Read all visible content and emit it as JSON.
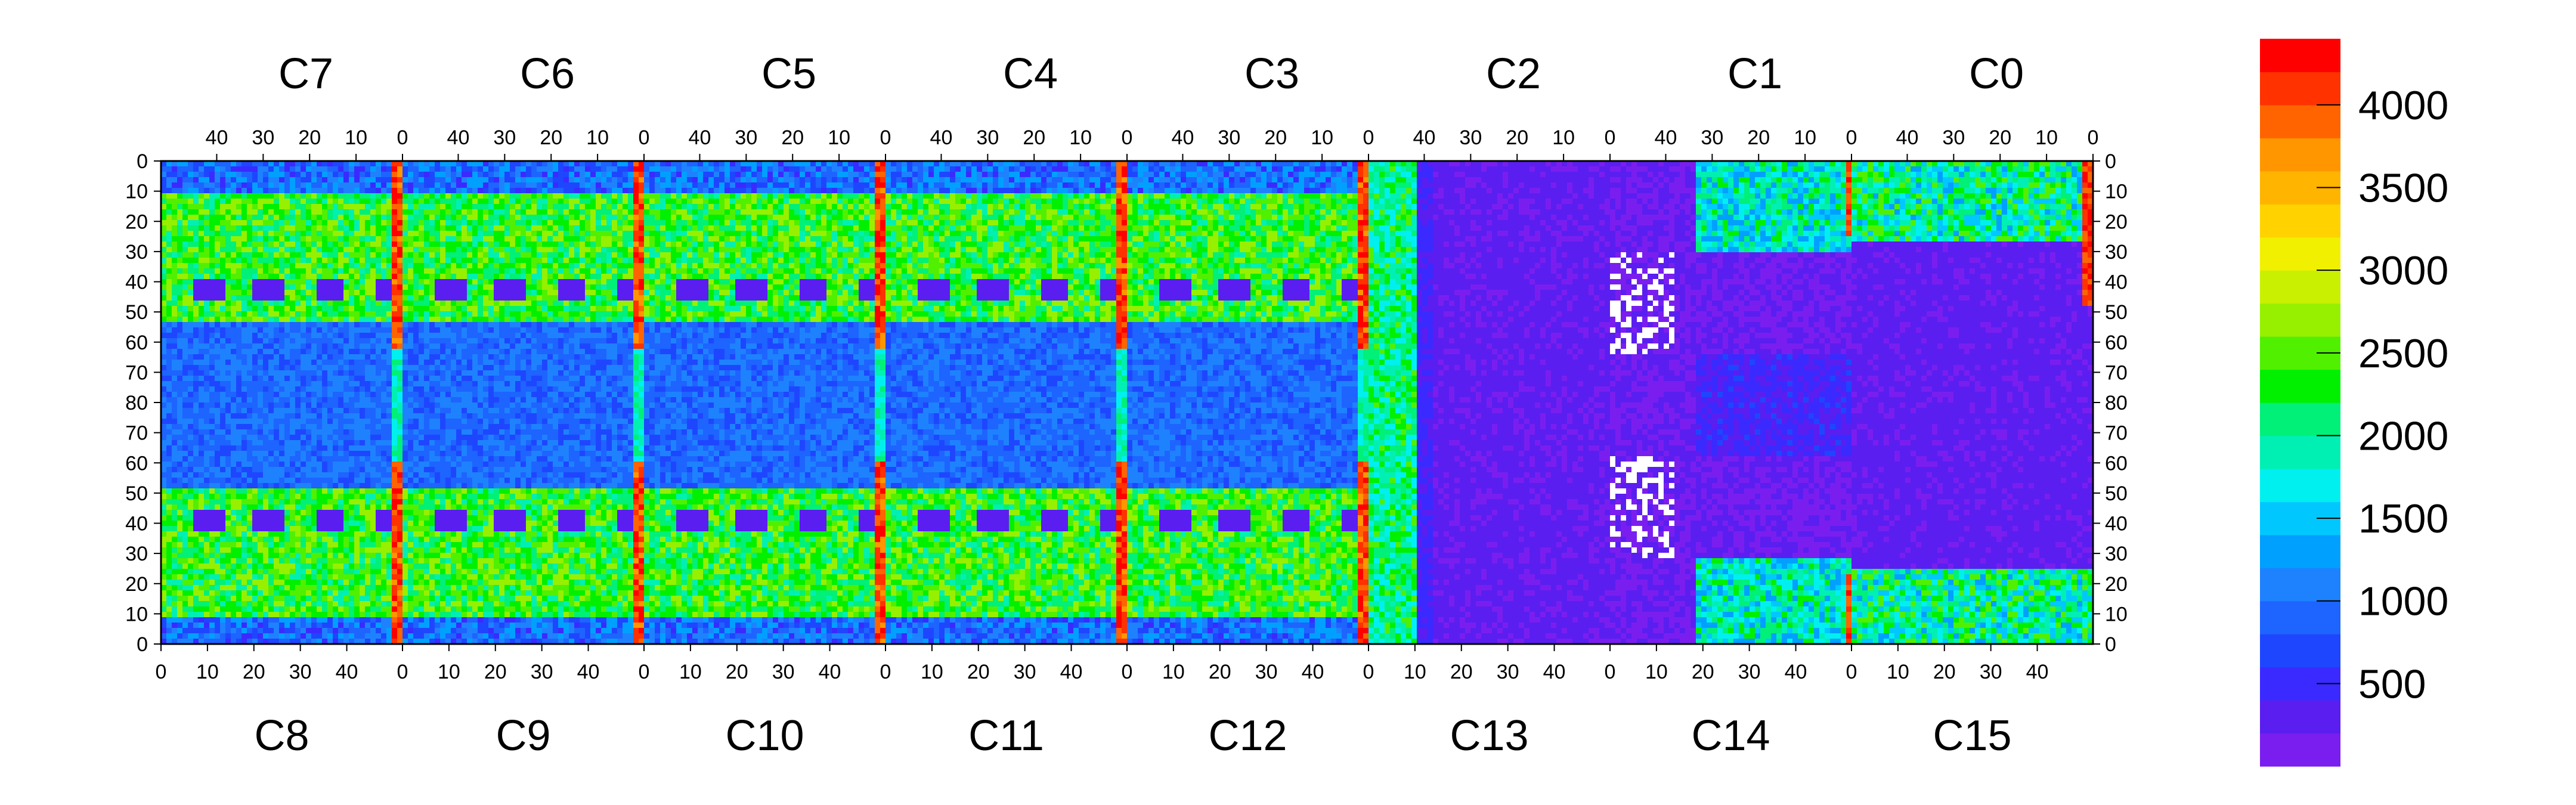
{
  "chart_data": {
    "type": "heatmap",
    "title": "",
    "chip_labels_top": [
      "C7",
      "C6",
      "C5",
      "C4",
      "C3",
      "C2",
      "C1",
      "C0"
    ],
    "chip_labels_bottom": [
      "C8",
      "C9",
      "C10",
      "C11",
      "C12",
      "C13",
      "C14",
      "C15"
    ],
    "x_ticks_top": [
      "40",
      "30",
      "20",
      "10",
      "0"
    ],
    "x_ticks_bottom": [
      "0",
      "10",
      "20",
      "30",
      "40"
    ],
    "y_ticks_left": [
      "0",
      "10",
      "20",
      "30",
      "40",
      "50",
      "60",
      "70",
      "80",
      "70",
      "60",
      "50",
      "40",
      "30",
      "20",
      "10",
      "0"
    ],
    "y_ticks_right": [
      "0",
      "10",
      "20",
      "30",
      "40",
      "50",
      "60",
      "70",
      "80",
      "70",
      "60",
      "50",
      "40",
      "30",
      "20",
      "10",
      "0"
    ],
    "chip_columns": 52,
    "rows_per_half": 80,
    "colorbar": {
      "min": 0,
      "max": 4400,
      "ticks": [
        "500",
        "1000",
        "1500",
        "2000",
        "2500",
        "3000",
        "3500",
        "4000"
      ],
      "colors": [
        "#7a1ef0",
        "#5a1ef0",
        "#3a2aff",
        "#1e46ff",
        "#1e64ff",
        "#1e82ff",
        "#00a0ff",
        "#00c8ff",
        "#00f0f0",
        "#00f0b4",
        "#00f078",
        "#00f000",
        "#50f000",
        "#96f000",
        "#c8f000",
        "#f0f000",
        "#ffd200",
        "#ffb400",
        "#ff9600",
        "#ff6400",
        "#ff3200",
        "#ff0000"
      ]
    },
    "approx_regions": [
      {
        "chips": "C7-C12 (top/bottom halves)",
        "level": "2000-2800",
        "note": "green/cyan pixel body"
      },
      {
        "chips": "chip boundary columns C7|C6, C6|C5, C5|C4, C4|C3, C3|C2",
        "level": "3800-4400",
        "note": "red hot columns at column 0"
      },
      {
        "chips": "C13, C14, C2, C1 center",
        "level": "0-300",
        "note": "low occupancy, violet"
      },
      {
        "chips": "C14 / C1 boundary",
        "level": "0",
        "note": "white dead pixels cluster"
      },
      {
        "chips": "C0 top-right corner",
        "level": "4000",
        "note": "red spot"
      }
    ]
  }
}
